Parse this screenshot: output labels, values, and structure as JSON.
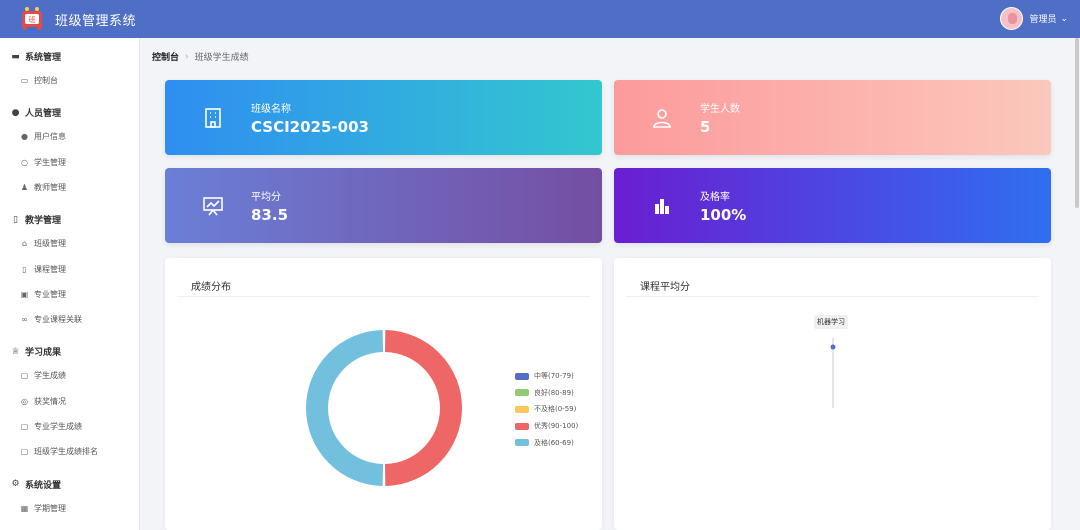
{
  "app": {
    "title": "班级管理系统"
  },
  "user": {
    "name": "管理员"
  },
  "sidebar": {
    "groups": [
      {
        "label": "系统管理",
        "icon": "monitor-icon",
        "items": [
          {
            "label": "控制台",
            "icon": "dashboard-icon"
          }
        ]
      },
      {
        "label": "人员管理",
        "icon": "user-icon",
        "items": [
          {
            "label": "用户信息",
            "icon": "user-icon"
          },
          {
            "label": "学生管理",
            "icon": "user-outline-icon"
          },
          {
            "label": "教师管理",
            "icon": "teacher-icon"
          }
        ]
      },
      {
        "label": "教学管理",
        "icon": "book-icon",
        "items": [
          {
            "label": "班级管理",
            "icon": "home-icon"
          },
          {
            "label": "课程管理",
            "icon": "notebook-icon"
          },
          {
            "label": "专业管理",
            "icon": "folder-icon"
          },
          {
            "label": "专业课程关联",
            "icon": "link-icon"
          }
        ]
      },
      {
        "label": "学习成果",
        "icon": "trophy-icon",
        "items": [
          {
            "label": "学生成绩",
            "icon": "document-icon"
          },
          {
            "label": "获奖情况",
            "icon": "medal-icon"
          },
          {
            "label": "专业学生成绩",
            "icon": "document-icon"
          },
          {
            "label": "班级学生成绩排名",
            "icon": "document-icon"
          }
        ]
      },
      {
        "label": "系统设置",
        "icon": "settings-icon",
        "items": [
          {
            "label": "学期管理",
            "icon": "calendar-icon"
          }
        ]
      }
    ]
  },
  "breadcrumb": {
    "home": "控制台",
    "current": "班级学生成绩"
  },
  "stats": [
    {
      "label": "班级名称",
      "value": "CSCI2025-003",
      "icon": "building-icon"
    },
    {
      "label": "学生人数",
      "value": "5",
      "icon": "user-outline-icon"
    },
    {
      "label": "平均分",
      "value": "83.5",
      "icon": "presentation-chart-icon"
    },
    {
      "label": "及格率",
      "value": "100%",
      "icon": "bar-chart-icon"
    }
  ],
  "panels": {
    "distribution_title": "成绩分布",
    "course_avg_title": "课程平均分",
    "course_tooltip": "机器学习"
  },
  "colors": {
    "header": "#4f6fc6",
    "grade_colors": [
      "#5470c6",
      "#91cc75",
      "#fac858",
      "#ee6666",
      "#73c0de"
    ]
  },
  "chart_data": [
    {
      "type": "pie",
      "title": "成绩分布",
      "donut": true,
      "categories": [
        "中等(70-79)",
        "良好(80-89)",
        "不及格(0-59)",
        "优秀(90-100)",
        "及格(60-69)"
      ],
      "values": [
        0,
        0,
        0,
        1,
        1
      ],
      "legend": "right"
    },
    {
      "type": "line",
      "title": "课程平均分",
      "categories": [
        "机器学习"
      ],
      "values": [
        83.5
      ]
    }
  ]
}
